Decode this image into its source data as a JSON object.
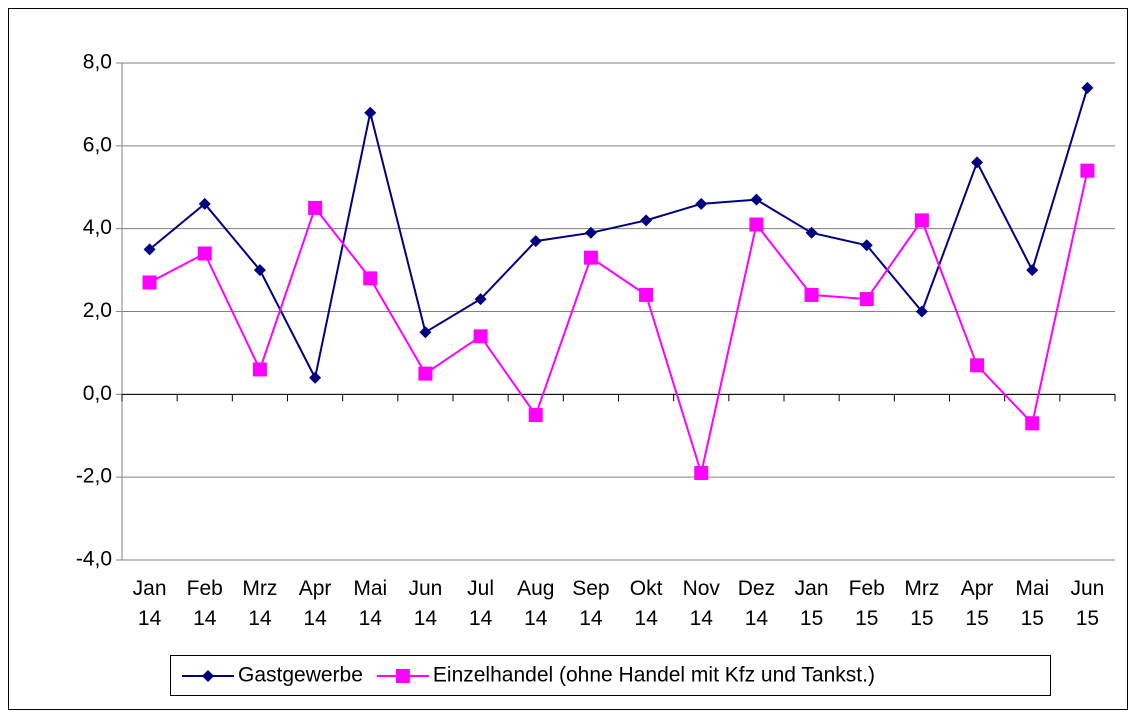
{
  "chart_data": {
    "type": "line",
    "categories": [
      "Jan 14",
      "Feb 14",
      "Mrz 14",
      "Apr 14",
      "Mai 14",
      "Jun 14",
      "Jul 14",
      "Aug 14",
      "Sep 14",
      "Okt 14",
      "Nov 14",
      "Dez 14",
      "Jan 15",
      "Feb 15",
      "Mrz 15",
      "Apr 15",
      "Mai 15",
      "Jun 15"
    ],
    "series": [
      {
        "name": "Gastgewerbe",
        "color": "#000080",
        "marker": "diamond",
        "values": [
          3.5,
          4.6,
          3.0,
          0.4,
          6.8,
          1.5,
          2.3,
          3.7,
          3.9,
          4.2,
          4.6,
          4.7,
          3.9,
          3.6,
          2.0,
          5.6,
          3.0,
          7.4
        ]
      },
      {
        "name": "Einzelhandel (ohne Handel mit Kfz und Tankst.)",
        "color": "#ff00ff",
        "marker": "square",
        "values": [
          2.7,
          3.4,
          0.6,
          4.5,
          2.8,
          0.5,
          1.4,
          -0.5,
          3.3,
          2.4,
          -1.9,
          4.1,
          2.4,
          2.3,
          4.2,
          0.7,
          -0.7,
          5.4
        ]
      }
    ],
    "ylim": [
      -4,
      8
    ],
    "yticks": [
      {
        "value": -4,
        "label": "-4,0"
      },
      {
        "value": -2,
        "label": "-2,0"
      },
      {
        "value": 0,
        "label": "0,0"
      },
      {
        "value": 2,
        "label": "2,0"
      },
      {
        "value": 4,
        "label": "4,0"
      },
      {
        "value": 6,
        "label": "6,0"
      },
      {
        "value": 8,
        "label": "8,0"
      }
    ],
    "grid": true,
    "legend": "bottom"
  }
}
